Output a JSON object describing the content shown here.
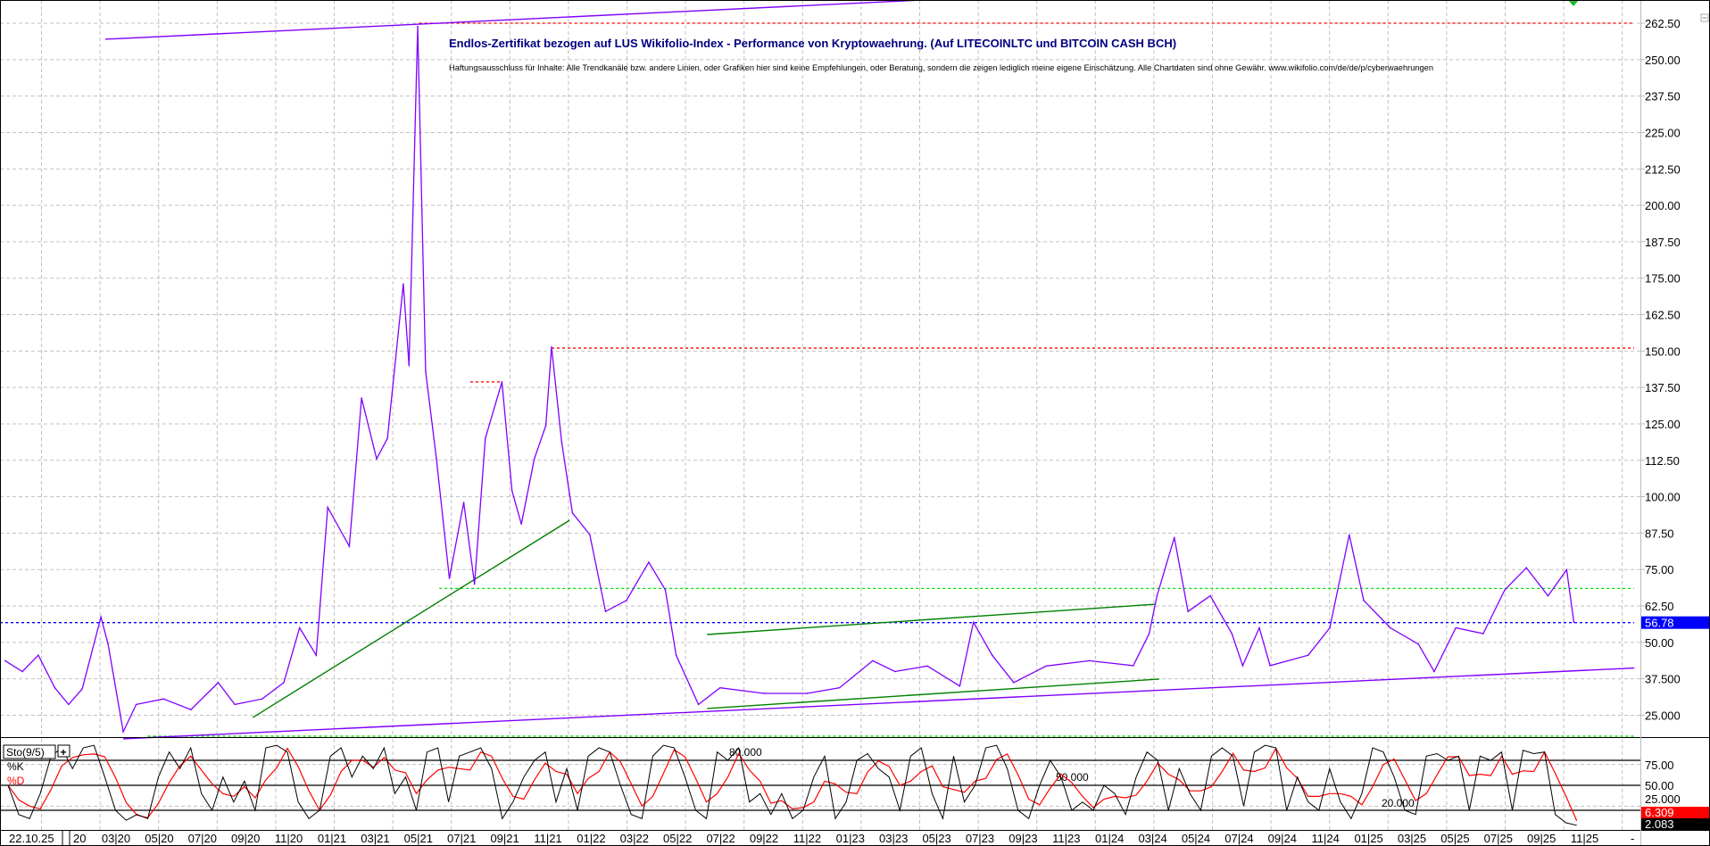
{
  "chart_data": [
    {
      "type": "line",
      "title": "Endlos-Zertifikat bezogen auf LUS Wikifolio-Index - Performance von Kryptowaehrung. (Auf LITECOINLTC und BITCOIN CASH BCH)",
      "subtitle": "Haftungsausschluss für Inhalte: Alle Trendkanäle bzw. andere Linien, oder Grafiken hier sind keine Empfehlungen, oder Beratung, sondern die zeigen lediglich meine eigene Einschätzung. Alle Chartdaten sind ohne Gewähr. www.wikifolio.com/de/de/p/cyberwaehrungen",
      "grid": true,
      "y_range": [
        17.5,
        270.5
      ],
      "y_ticks": [
        "25.000",
        "37.500",
        "50.00",
        "62.50",
        "75.00",
        "87.50",
        "100.00",
        "112.50",
        "125.00",
        "137.50",
        "150.00",
        "162.50",
        "175.00",
        "187.50",
        "200.00",
        "212.50",
        "225.00",
        "237.50",
        "250.00",
        "262.50"
      ],
      "x_ticks": [
        "22.10.25",
        "20",
        "03|20",
        "05|20",
        "07|20",
        "09|20",
        "11|20",
        "01|21",
        "03|21",
        "05|21",
        "07|21",
        "09|21",
        "11|21",
        "01|22",
        "03|22",
        "05|22",
        "07|22",
        "09|22",
        "11|22",
        "01|23",
        "03|23",
        "05|23",
        "07|23",
        "09|23",
        "11|23",
        "01|24",
        "03|24",
        "05|24",
        "07|24",
        "09|24",
        "11|24",
        "01|25",
        "03|25",
        "05|25",
        "07|25",
        "09|25",
        "11|25",
        "-"
      ],
      "last_price": "56.78",
      "last_price_color": "#0000ff",
      "series": [
        {
          "color": "#8000ff",
          "x": [
            "2019-09-27",
            "2019-10-21",
            "2019-11-13",
            "2019-12-06",
            "2019-12-25",
            "2020-01-14",
            "2020-02-10",
            "2020-02-20",
            "2020-03-11",
            "2020-03-29",
            "2020-05-07",
            "2020-06-15",
            "2020-07-23",
            "2020-08-16",
            "2020-09-24",
            "2020-10-24",
            "2020-11-16",
            "2020-12-09",
            "2020-12-25",
            "2021-01-25",
            "2021-02-12",
            "2021-03-03",
            "2021-03-18",
            "2021-04-10",
            "2021-04-18",
            "2021-04-30",
            "2021-05-11",
            "2021-05-26",
            "2021-06-14",
            "2021-07-04",
            "2021-07-19",
            "2021-08-04",
            "2021-08-27",
            "2021-09-11",
            "2021-09-24",
            "2021-10-12",
            "2021-10-28",
            "2021-11-06",
            "2021-11-20",
            "2021-12-05",
            "2021-12-29",
            "2022-01-21",
            "2022-02-20",
            "2022-03-21",
            "2022-04-14",
            "2022-04-29",
            "2022-05-30",
            "2022-06-30",
            "2022-08-31",
            "2022-11-01",
            "2022-12-16",
            "2023-02-02",
            "2023-03-03",
            "2023-04-18",
            "2023-06-03",
            "2023-06-22",
            "2023-07-18",
            "2023-08-18",
            "2023-10-03",
            "2023-12-03",
            "2024-02-04",
            "2024-02-26",
            "2024-03-07",
            "2024-03-31",
            "2024-04-20",
            "2024-05-21",
            "2024-06-21",
            "2024-07-06",
            "2024-07-29",
            "2024-08-14",
            "2024-10-07",
            "2024-11-07",
            "2024-12-04",
            "2024-12-24",
            "2025-02-01",
            "2025-03-10",
            "2025-04-02",
            "2025-05-02",
            "2025-06-10",
            "2025-07-10",
            "2025-08-10",
            "2025-09-10",
            "2025-10-06",
            "2025-10-16"
          ],
          "y": [
            43.7,
            40,
            45.6,
            34.4,
            28.7,
            34,
            58.7,
            49.4,
            19.3,
            28.7,
            30.6,
            26.9,
            36.2,
            28.7,
            30.6,
            36.2,
            55,
            45.6,
            96.3,
            83,
            133.8,
            113,
            120,
            173,
            145,
            261.4,
            143,
            113,
            72,
            98,
            70,
            120,
            139.4,
            102,
            90.6,
            113,
            124.4,
            151.4,
            118.8,
            94.4,
            87,
            60.6,
            64.4,
            77.5,
            68,
            45.6,
            28.7,
            34.4,
            32.5,
            32.5,
            34.4,
            43.7,
            40,
            41.9,
            35,
            56.9,
            45.6,
            36.2,
            41.9,
            43.7,
            42,
            53,
            66,
            86,
            60.6,
            66,
            53,
            42,
            55,
            42,
            45.6,
            55,
            86.9,
            64.4,
            55,
            49.4,
            40,
            55,
            53,
            68,
            75.6,
            66,
            74.9,
            56.9
          ]
        }
      ],
      "trendlines": [
        {
          "from": [
            "2020-02-16",
            257.0
          ],
          "to": [
            "2023-04-14",
            270.5
          ],
          "color": "#8000ff",
          "style": "solid"
        },
        {
          "from": [
            "2020-03-11",
            16.9
          ],
          "to": [
            "2026-01-10",
            41.2
          ],
          "color": "#8000ff",
          "style": "solid"
        },
        {
          "from": [
            "2020-09-11",
            24.2
          ],
          "to": [
            "2021-12-01",
            91.9
          ],
          "color": "#008000",
          "style": "solid"
        },
        {
          "from": [
            "2022-06-12",
            52.7
          ],
          "to": [
            "2024-03-05",
            63.1
          ],
          "color": "#008000",
          "style": "solid"
        },
        {
          "from": [
            "2022-06-12",
            27.3
          ],
          "to": [
            "2024-03-10",
            37.4
          ],
          "color": "#008000",
          "style": "solid"
        }
      ],
      "horizontal_levels": [
        {
          "value": 262.5,
          "from": "2021-05-02",
          "to": "2026-01-10",
          "color": "#ff0000"
        },
        {
          "value": 151.0,
          "from": "2021-11-06",
          "to": "2026-01-10",
          "color": "#ff0000"
        },
        {
          "value": 139.4,
          "from": "2021-07-13",
          "to": "2021-08-26",
          "color": "#ff0000"
        },
        {
          "value": 68.5,
          "from": "2021-05-30",
          "to": "2026-01-10",
          "color": "#00dd00"
        },
        {
          "value": 17.8,
          "from": "2020-04-15",
          "to": "2026-01-10",
          "color": "#00dd00"
        },
        {
          "value": 56.78,
          "from": "2019-09-01",
          "to": "2026-02-15",
          "color": "#0000ff"
        }
      ]
    },
    {
      "type": "line",
      "label": "Sto(9/5)",
      "y_range": [
        0,
        100
      ],
      "y_ticks": [
        "75.00",
        "50.00",
        "25.000"
      ],
      "levels": [
        80,
        50,
        20
      ],
      "level_labels": [
        "80.000",
        "50.000",
        "20.000"
      ],
      "last_k": "2.083",
      "last_d": "6.309",
      "k_dates": [
        "2019-10-01",
        "2025-10-20"
      ],
      "series": [
        {
          "name": "%K",
          "color": "#000000",
          "values": [
            50,
            15,
            10,
            40,
            85,
            95,
            70,
            95,
            98,
            60,
            20,
            8,
            15,
            10,
            60,
            90,
            70,
            95,
            40,
            20,
            60,
            30,
            55,
            20,
            95,
            98,
            90,
            30,
            10,
            20,
            85,
            95,
            60,
            85,
            70,
            95,
            40,
            60,
            20,
            90,
            95,
            30,
            85,
            90,
            95,
            70,
            10,
            30,
            60,
            80,
            90,
            30,
            70,
            20,
            85,
            95,
            90,
            50,
            15,
            10,
            85,
            98,
            95,
            60,
            20,
            10,
            90,
            80,
            95,
            30,
            40,
            15,
            40,
            10,
            20,
            60,
            85,
            10,
            30,
            80,
            88,
            70,
            60,
            20,
            85,
            95,
            40,
            10,
            85,
            30,
            50,
            95,
            98,
            70,
            20,
            10,
            50,
            80,
            60,
            20,
            30,
            20,
            50,
            40,
            15,
            60,
            90,
            80,
            20,
            70,
            40,
            20,
            85,
            95,
            85,
            25,
            90,
            98,
            95,
            20,
            60,
            30,
            20,
            70,
            30,
            10,
            40,
            95,
            90,
            60,
            20,
            15,
            85,
            88,
            80,
            85,
            20,
            85,
            80,
            90,
            20,
            92,
            88,
            90,
            15,
            5,
            2
          ]
        },
        {
          "name": "%D",
          "color": "#ff0000"
        }
      ]
    }
  ],
  "ui": {
    "collapse_icon": "minus-box-icon",
    "marker_icon": "green-triangle-icon",
    "add_indicator": "+"
  }
}
